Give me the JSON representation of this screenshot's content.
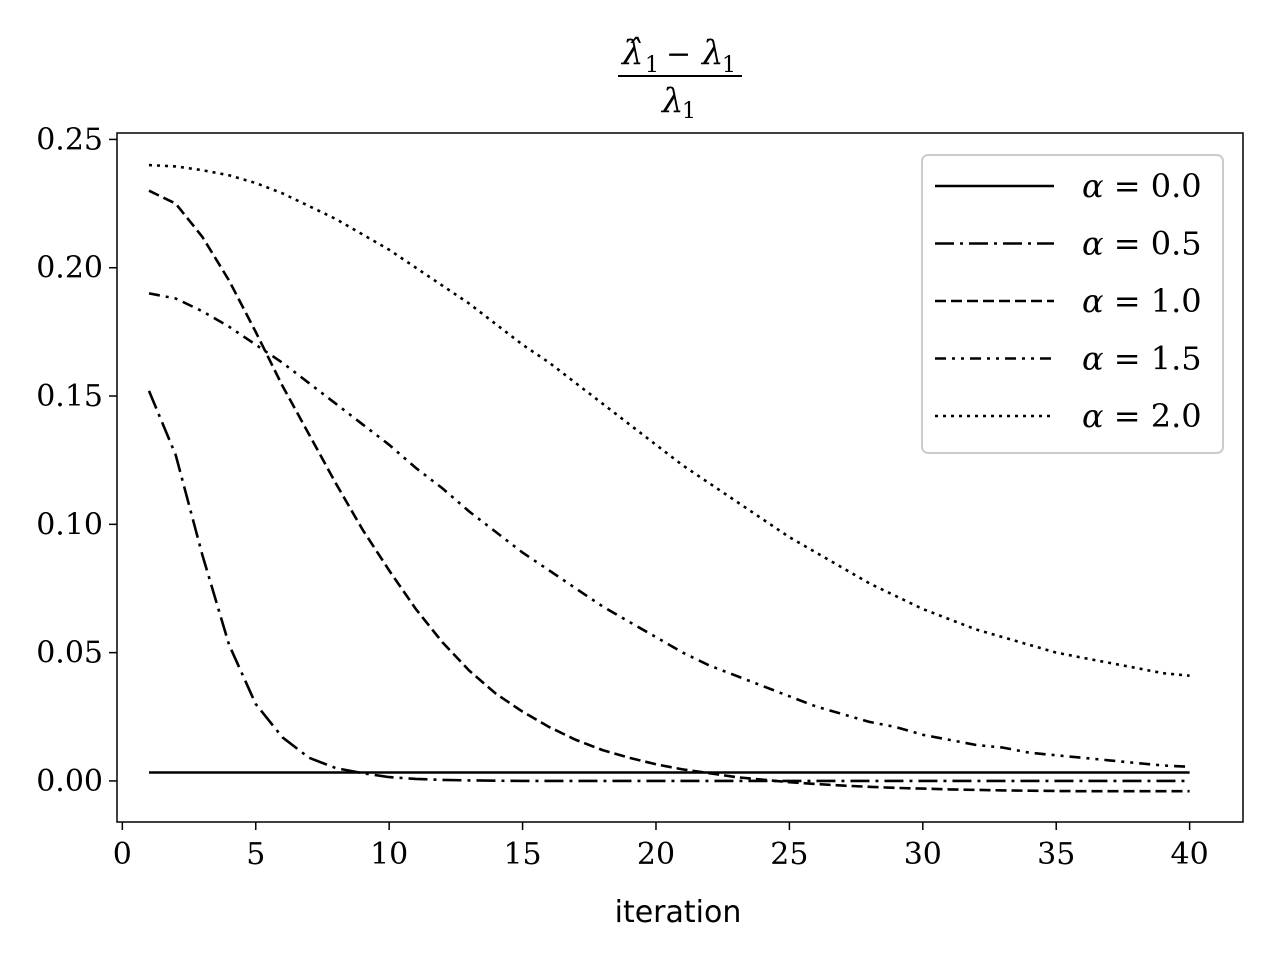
{
  "chart_data": {
    "type": "line",
    "title": {
      "numerator_hat": "λ̂",
      "numerator_sub": "1",
      "numerator_minus": "−",
      "numerator_rhs": "λ",
      "numerator_rhs_sub": "1",
      "denominator": "λ",
      "denominator_sub": "1"
    },
    "xlabel": "iteration",
    "ylabel": "",
    "xlim": [
      -0.2,
      42
    ],
    "ylim": [
      -0.016,
      0.2525
    ],
    "xticks": [
      0,
      5,
      10,
      15,
      20,
      25,
      30,
      35,
      40
    ],
    "xtick_labels": [
      "0",
      "5",
      "10",
      "15",
      "20",
      "25",
      "30",
      "35",
      "40"
    ],
    "yticks": [
      0.0,
      0.05,
      0.1,
      0.15,
      0.2,
      0.25
    ],
    "ytick_labels": [
      "0.00",
      "0.05",
      "0.10",
      "0.15",
      "0.20",
      "0.25"
    ],
    "grid": false,
    "legend_placement": "top-right",
    "x": [
      1,
      2,
      3,
      4,
      5,
      6,
      7,
      8,
      9,
      10,
      11,
      12,
      13,
      14,
      15,
      16,
      17,
      18,
      19,
      20,
      21,
      22,
      23,
      24,
      25,
      26,
      27,
      28,
      29,
      30,
      31,
      32,
      33,
      34,
      35,
      36,
      37,
      38,
      39,
      40
    ],
    "series": [
      {
        "name": "α = 0.0",
        "legend_symbol": "α",
        "legend_value": "= 0.0",
        "dash": "solid",
        "color": "#000000",
        "values": [
          0.0033,
          0.0033,
          0.0033,
          0.0033,
          0.0033,
          0.0033,
          0.0033,
          0.0033,
          0.0033,
          0.0033,
          0.0033,
          0.0033,
          0.0033,
          0.0033,
          0.0033,
          0.0033,
          0.0033,
          0.0033,
          0.0033,
          0.0033,
          0.0033,
          0.0033,
          0.0033,
          0.0033,
          0.0033,
          0.0033,
          0.0033,
          0.0033,
          0.0033,
          0.0033,
          0.0033,
          0.0033,
          0.0033,
          0.0033,
          0.0033,
          0.0033,
          0.0033,
          0.0033,
          0.0033,
          0.0033
        ]
      },
      {
        "name": "α = 0.5",
        "legend_symbol": "α",
        "legend_value": "= 0.5",
        "dash": "dashdot",
        "color": "#000000",
        "values": [
          0.152,
          0.127,
          0.088,
          0.053,
          0.03,
          0.017,
          0.009,
          0.005,
          0.003,
          0.0015,
          0.0008,
          0.0004,
          0.0002,
          0.0001,
          0.0,
          0.0,
          0.0,
          0.0,
          0.0,
          0.0,
          0.0,
          0.0,
          0.0,
          0.0,
          0.0,
          0.0,
          0.0,
          0.0,
          0.0,
          0.0,
          0.0,
          0.0,
          0.0,
          0.0,
          0.0,
          0.0,
          0.0,
          0.0,
          0.0,
          0.0
        ]
      },
      {
        "name": "α = 1.0",
        "legend_symbol": "α",
        "legend_value": "= 1.0",
        "dash": "dashed",
        "color": "#000000",
        "values": [
          0.23,
          0.225,
          0.212,
          0.195,
          0.175,
          0.154,
          0.135,
          0.116,
          0.098,
          0.082,
          0.067,
          0.054,
          0.043,
          0.034,
          0.027,
          0.021,
          0.016,
          0.012,
          0.009,
          0.0065,
          0.0045,
          0.003,
          0.0015,
          0.0005,
          -0.0005,
          -0.0012,
          -0.0018,
          -0.0023,
          -0.0027,
          -0.003,
          -0.0033,
          -0.0035,
          -0.0037,
          -0.0038,
          -0.0039,
          -0.004,
          -0.004,
          -0.004,
          -0.004,
          -0.004
        ]
      },
      {
        "name": "α = 1.5",
        "legend_symbol": "α",
        "legend_value": "= 1.5",
        "dash": "dashdotdot",
        "color": "#000000",
        "values": [
          0.19,
          0.188,
          0.183,
          0.177,
          0.17,
          0.163,
          0.155,
          0.147,
          0.139,
          0.131,
          0.122,
          0.114,
          0.105,
          0.097,
          0.089,
          0.082,
          0.075,
          0.068,
          0.062,
          0.056,
          0.05,
          0.045,
          0.041,
          0.037,
          0.033,
          0.029,
          0.026,
          0.023,
          0.021,
          0.018,
          0.016,
          0.014,
          0.013,
          0.011,
          0.01,
          0.009,
          0.008,
          0.007,
          0.006,
          0.0055
        ]
      },
      {
        "name": "α = 2.0",
        "legend_symbol": "α",
        "legend_value": "= 2.0",
        "dash": "dotted",
        "color": "#000000",
        "values": [
          0.24,
          0.2395,
          0.238,
          0.236,
          0.233,
          0.229,
          0.224,
          0.219,
          0.213,
          0.207,
          0.2,
          0.193,
          0.186,
          0.178,
          0.17,
          0.163,
          0.155,
          0.147,
          0.139,
          0.131,
          0.123,
          0.116,
          0.109,
          0.102,
          0.095,
          0.089,
          0.083,
          0.077,
          0.072,
          0.067,
          0.063,
          0.059,
          0.056,
          0.053,
          0.05,
          0.048,
          0.046,
          0.044,
          0.042,
          0.041
        ]
      }
    ]
  }
}
